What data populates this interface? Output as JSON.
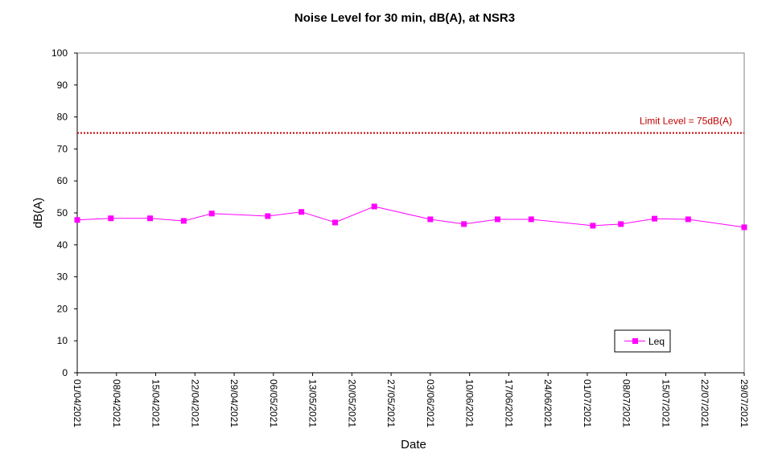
{
  "chart_data": {
    "type": "line",
    "title": "Noise Level for 30 min, dB(A), at NSR3",
    "xlabel": "Date",
    "ylabel": "dB(A)",
    "ylim": [
      0,
      100
    ],
    "y_ticks": [
      0,
      10,
      20,
      30,
      40,
      50,
      60,
      70,
      80,
      90,
      100
    ],
    "x_range": [
      "2021-04-01",
      "2021-07-29"
    ],
    "x_ticks": [
      "01/04/2021",
      "08/04/2021",
      "15/04/2021",
      "22/04/2021",
      "29/04/2021",
      "06/05/2021",
      "13/05/2021",
      "20/05/2021",
      "27/05/2021",
      "03/06/2021",
      "10/06/2021",
      "17/06/2021",
      "24/06/2021",
      "01/07/2021",
      "08/07/2021",
      "15/07/2021",
      "22/07/2021",
      "29/07/2021"
    ],
    "grid": false,
    "legend_position": "bottom-right",
    "series": [
      {
        "name": "Leq",
        "color": "#ff00ff",
        "marker": "square",
        "points": [
          {
            "x": "2021-04-01",
            "y": 47.8
          },
          {
            "x": "2021-04-07",
            "y": 48.3
          },
          {
            "x": "2021-04-14",
            "y": 48.3
          },
          {
            "x": "2021-04-20",
            "y": 47.5
          },
          {
            "x": "2021-04-25",
            "y": 49.8
          },
          {
            "x": "2021-05-05",
            "y": 49.0
          },
          {
            "x": "2021-05-11",
            "y": 50.3
          },
          {
            "x": "2021-05-17",
            "y": 47.0
          },
          {
            "x": "2021-05-24",
            "y": 52.0
          },
          {
            "x": "2021-06-03",
            "y": 48.0
          },
          {
            "x": "2021-06-09",
            "y": 46.5
          },
          {
            "x": "2021-06-15",
            "y": 48.0
          },
          {
            "x": "2021-06-21",
            "y": 48.0
          },
          {
            "x": "2021-07-02",
            "y": 46.0
          },
          {
            "x": "2021-07-07",
            "y": 46.5
          },
          {
            "x": "2021-07-13",
            "y": 48.2
          },
          {
            "x": "2021-07-19",
            "y": 48.0
          },
          {
            "x": "2021-07-29",
            "y": 45.5
          }
        ]
      }
    ],
    "limit_line": {
      "label": "Limit Level  = 75dB(A)",
      "value": 75,
      "color": "#c00000",
      "style": "dotted"
    }
  }
}
